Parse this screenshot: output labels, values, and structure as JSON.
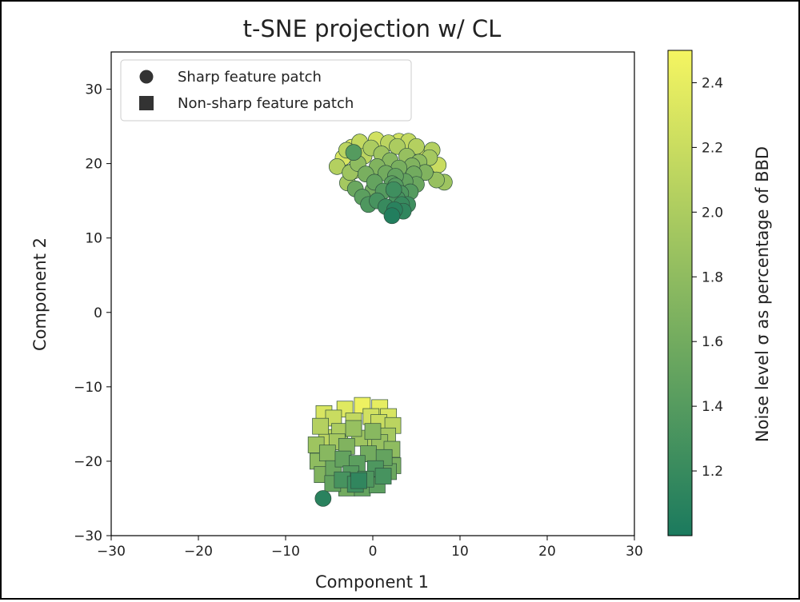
{
  "chart_data": {
    "type": "scatter",
    "title": "t-SNE projection w/ CL",
    "xlabel": "Component 1",
    "ylabel": "Component 2",
    "xlim": [
      -30,
      30
    ],
    "ylim": [
      -30,
      35
    ],
    "x_ticks": [
      -30,
      -20,
      -10,
      0,
      10,
      20,
      30
    ],
    "y_ticks": [
      -30,
      -20,
      -10,
      0,
      10,
      20,
      30
    ],
    "x_tick_labels": [
      "−30",
      "−20",
      "−10",
      "0",
      "10",
      "20",
      "30"
    ],
    "y_tick_labels": [
      "−30",
      "−20",
      "−10",
      "0",
      "10",
      "20",
      "30"
    ],
    "grid": false,
    "legend": {
      "position": "top-left",
      "entries": [
        {
          "label": "Sharp feature patch",
          "marker": "circle",
          "color": "#333333"
        },
        {
          "label": "Non-sharp feature patch",
          "marker": "square",
          "color": "#333333"
        }
      ]
    },
    "colorbar": {
      "label": "Noise level σ as percentage of BBD",
      "range": [
        1.0,
        2.5
      ],
      "ticks": [
        1.2,
        1.4,
        1.6,
        1.8,
        2.0,
        2.2,
        2.4
      ],
      "tick_labels": [
        "1.2",
        "1.4",
        "1.6",
        "1.8",
        "2.0",
        "2.2",
        "2.4"
      ],
      "colormap": "summer_r",
      "color_low": "#1b7a5e",
      "color_high": "#f5f561"
    },
    "series": [
      {
        "name": "Sharp feature patch",
        "marker": "circle",
        "points": [
          {
            "x": 2.2,
            "y": 13.0,
            "c": 1.05
          },
          {
            "x": -5.7,
            "y": -25.0,
            "c": 1.1
          },
          {
            "x": 2.5,
            "y": 13.8,
            "c": 1.1
          },
          {
            "x": 3.5,
            "y": 13.6,
            "c": 1.15
          },
          {
            "x": 1.5,
            "y": 14.2,
            "c": 1.2
          },
          {
            "x": 4.0,
            "y": 14.5,
            "c": 1.25
          },
          {
            "x": 0.5,
            "y": 15.0,
            "c": 1.3
          },
          {
            "x": 2.8,
            "y": 15.3,
            "c": 1.3
          },
          {
            "x": -0.5,
            "y": 14.5,
            "c": 1.35
          },
          {
            "x": 3.2,
            "y": 16.0,
            "c": 1.35
          },
          {
            "x": 1.2,
            "y": 16.3,
            "c": 1.4
          },
          {
            "x": 4.3,
            "y": 16.2,
            "c": 1.4
          },
          {
            "x": -1.2,
            "y": 15.5,
            "c": 1.45
          },
          {
            "x": 2.2,
            "y": 17.3,
            "c": 1.45
          },
          {
            "x": 0.2,
            "y": 17.5,
            "c": 1.5
          },
          {
            "x": 3.7,
            "y": 17.6,
            "c": 1.5
          },
          {
            "x": 5.0,
            "y": 17.2,
            "c": 1.55
          },
          {
            "x": 2.6,
            "y": 17.0,
            "c": 1.4
          },
          {
            "x": -2.0,
            "y": 16.6,
            "c": 1.55
          },
          {
            "x": 1.5,
            "y": 18.7,
            "c": 1.6
          },
          {
            "x": 4.7,
            "y": 18.6,
            "c": 1.6
          },
          {
            "x": -0.8,
            "y": 18.6,
            "c": 1.65
          },
          {
            "x": 3.0,
            "y": 19.4,
            "c": 1.65
          },
          {
            "x": 6.0,
            "y": 18.8,
            "c": 1.7
          },
          {
            "x": 0.5,
            "y": 19.6,
            "c": 1.7
          },
          {
            "x": -2.2,
            "y": 21.5,
            "c": 1.4
          },
          {
            "x": 2.0,
            "y": 20.4,
            "c": 1.75
          },
          {
            "x": 5.3,
            "y": 20.2,
            "c": 1.8
          },
          {
            "x": -1.7,
            "y": 20.0,
            "c": 1.8
          },
          {
            "x": 3.9,
            "y": 21.0,
            "c": 1.85
          },
          {
            "x": 7.3,
            "y": 17.8,
            "c": 1.85
          },
          {
            "x": 1.0,
            "y": 21.3,
            "c": 1.9
          },
          {
            "x": -2.6,
            "y": 18.8,
            "c": 1.9
          },
          {
            "x": -4.1,
            "y": 19.6,
            "c": 2.05
          },
          {
            "x": -2.9,
            "y": 17.4,
            "c": 1.95
          },
          {
            "x": 6.5,
            "y": 20.8,
            "c": 1.95
          },
          {
            "x": -0.2,
            "y": 22.1,
            "c": 2.0
          },
          {
            "x": 2.8,
            "y": 22.3,
            "c": 2.0
          },
          {
            "x": 5.0,
            "y": 22.3,
            "c": 2.05
          },
          {
            "x": 6.8,
            "y": 21.8,
            "c": 2.05
          },
          {
            "x": -3.0,
            "y": 21.8,
            "c": 2.1
          },
          {
            "x": 1.8,
            "y": 22.8,
            "c": 2.1
          },
          {
            "x": -1.5,
            "y": 22.9,
            "c": 2.15
          },
          {
            "x": 4.1,
            "y": 23.0,
            "c": 2.15
          },
          {
            "x": 7.5,
            "y": 19.8,
            "c": 2.2
          },
          {
            "x": -2.2,
            "y": 19.0,
            "c": 2.2
          },
          {
            "x": 0.4,
            "y": 23.2,
            "c": 2.25
          },
          {
            "x": 3.0,
            "y": 23.0,
            "c": 2.25
          },
          {
            "x": -3.4,
            "y": 20.8,
            "c": 2.3
          },
          {
            "x": -2.4,
            "y": 22.2,
            "c": 2.35
          },
          {
            "x": 5.8,
            "y": 21.0,
            "c": 2.4
          },
          {
            "x": 6.5,
            "y": 19.2,
            "c": 2.45
          },
          {
            "x": 1.6,
            "y": 19.4,
            "c": 2.0
          },
          {
            "x": -1.0,
            "y": 21.0,
            "c": 2.1
          },
          {
            "x": 4.5,
            "y": 19.7,
            "c": 1.7
          },
          {
            "x": 2.6,
            "y": 18.3,
            "c": 1.5
          },
          {
            "x": 0.0,
            "y": 16.4,
            "c": 1.6
          },
          {
            "x": 8.2,
            "y": 17.5,
            "c": 1.9
          },
          {
            "x": 2.4,
            "y": 16.5,
            "c": 1.25
          },
          {
            "x": 3.3,
            "y": 14.5,
            "c": 1.2
          }
        ]
      },
      {
        "name": "Non-sharp feature patch",
        "marker": "square",
        "points": [
          {
            "x": -1.2,
            "y": -12.5,
            "c": 2.45
          },
          {
            "x": 0.8,
            "y": -12.8,
            "c": 2.4
          },
          {
            "x": -3.2,
            "y": -13.0,
            "c": 2.35
          },
          {
            "x": 1.8,
            "y": -14.0,
            "c": 2.3
          },
          {
            "x": -0.2,
            "y": -14.0,
            "c": 2.25
          },
          {
            "x": -4.5,
            "y": -14.2,
            "c": 2.2
          },
          {
            "x": -2.2,
            "y": -14.6,
            "c": 2.15
          },
          {
            "x": 2.3,
            "y": -15.2,
            "c": 2.1
          },
          {
            "x": -6.0,
            "y": -15.3,
            "c": 2.05
          },
          {
            "x": -3.8,
            "y": -16.0,
            "c": 2.0
          },
          {
            "x": 0.0,
            "y": -16.0,
            "c": 1.75
          },
          {
            "x": 1.7,
            "y": -16.6,
            "c": 1.95
          },
          {
            "x": -5.3,
            "y": -16.8,
            "c": 2.1
          },
          {
            "x": -1.5,
            "y": -16.9,
            "c": 1.9
          },
          {
            "x": 0.8,
            "y": -17.5,
            "c": 1.85
          },
          {
            "x": -6.5,
            "y": -17.8,
            "c": 1.9
          },
          {
            "x": -3.0,
            "y": -18.0,
            "c": 1.7
          },
          {
            "x": 2.2,
            "y": -18.4,
            "c": 1.8
          },
          {
            "x": -5.2,
            "y": -18.9,
            "c": 1.75
          },
          {
            "x": -0.5,
            "y": -19.0,
            "c": 1.6
          },
          {
            "x": 1.3,
            "y": -19.5,
            "c": 1.5
          },
          {
            "x": -3.4,
            "y": -19.7,
            "c": 1.5
          },
          {
            "x": -6.3,
            "y": -20.0,
            "c": 1.8
          },
          {
            "x": -1.8,
            "y": -20.3,
            "c": 1.45
          },
          {
            "x": 2.3,
            "y": -20.6,
            "c": 1.65
          },
          {
            "x": -4.5,
            "y": -21.0,
            "c": 1.55
          },
          {
            "x": 0.3,
            "y": -21.0,
            "c": 1.35
          },
          {
            "x": -5.8,
            "y": -21.8,
            "c": 1.7
          },
          {
            "x": -2.5,
            "y": -21.7,
            "c": 1.4
          },
          {
            "x": 1.2,
            "y": -22.0,
            "c": 1.3
          },
          {
            "x": -3.5,
            "y": -22.5,
            "c": 1.3
          },
          {
            "x": -0.8,
            "y": -22.4,
            "c": 1.35
          },
          {
            "x": -4.6,
            "y": -23.0,
            "c": 1.5
          },
          {
            "x": -2.0,
            "y": -23.1,
            "c": 1.25
          },
          {
            "x": 0.5,
            "y": -23.2,
            "c": 1.45
          },
          {
            "x": -3.0,
            "y": -23.6,
            "c": 1.6
          },
          {
            "x": -1.2,
            "y": -23.6,
            "c": 1.5
          },
          {
            "x": -1.6,
            "y": -22.6,
            "c": 1.15
          },
          {
            "x": 0.2,
            "y": -18.1,
            "c": 2.0
          },
          {
            "x": -2.2,
            "y": -15.6,
            "c": 1.85
          },
          {
            "x": 0.7,
            "y": -14.8,
            "c": 2.2
          },
          {
            "x": -4.1,
            "y": -17.4,
            "c": 1.95
          },
          {
            "x": 1.8,
            "y": -21.4,
            "c": 1.55
          },
          {
            "x": -5.6,
            "y": -13.6,
            "c": 2.3
          }
        ]
      }
    ]
  }
}
